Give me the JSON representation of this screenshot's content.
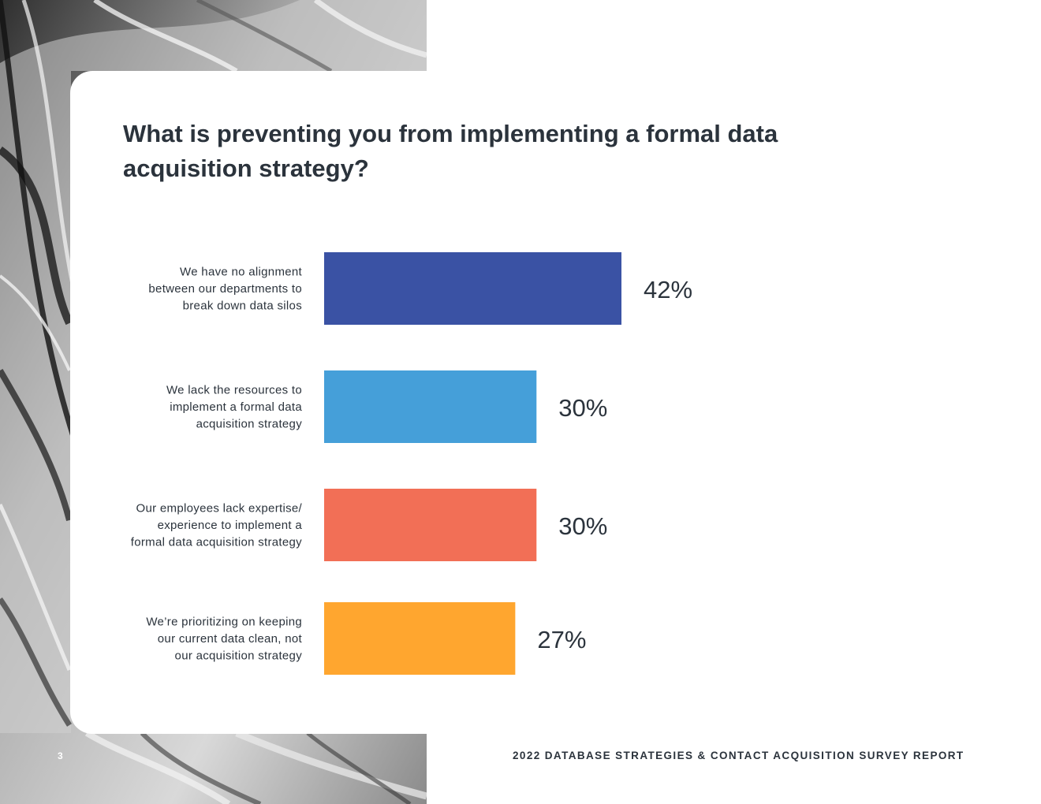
{
  "page": {
    "number": "3",
    "footer": "2022 DATABASE STRATEGIES & CONTACT ACQUISITION SURVEY REPORT"
  },
  "chart_data": {
    "type": "bar",
    "orientation": "horizontal",
    "title": "What is preventing you from implementing a formal data acquisition strategy?",
    "categories": [
      [
        "We have no alignment",
        "between our departments to",
        "break down data silos"
      ],
      [
        "We lack the resources to",
        "implement a formal data",
        "acquisition strategy"
      ],
      [
        "Our employees lack expertise/",
        "experience to implement a",
        "formal data acquisition strategy"
      ],
      [
        "We’re prioritizing on keeping",
        "our current data clean, not",
        "our acquisition strategy"
      ]
    ],
    "values": [
      42,
      30,
      30,
      27
    ],
    "value_labels": [
      "42%",
      "30%",
      "30%",
      "27%"
    ],
    "unit": "%",
    "colors": [
      "#3a52a4",
      "#459fd9",
      "#f26f56",
      "#ffa62f"
    ],
    "grid": false,
    "legend": "none"
  }
}
